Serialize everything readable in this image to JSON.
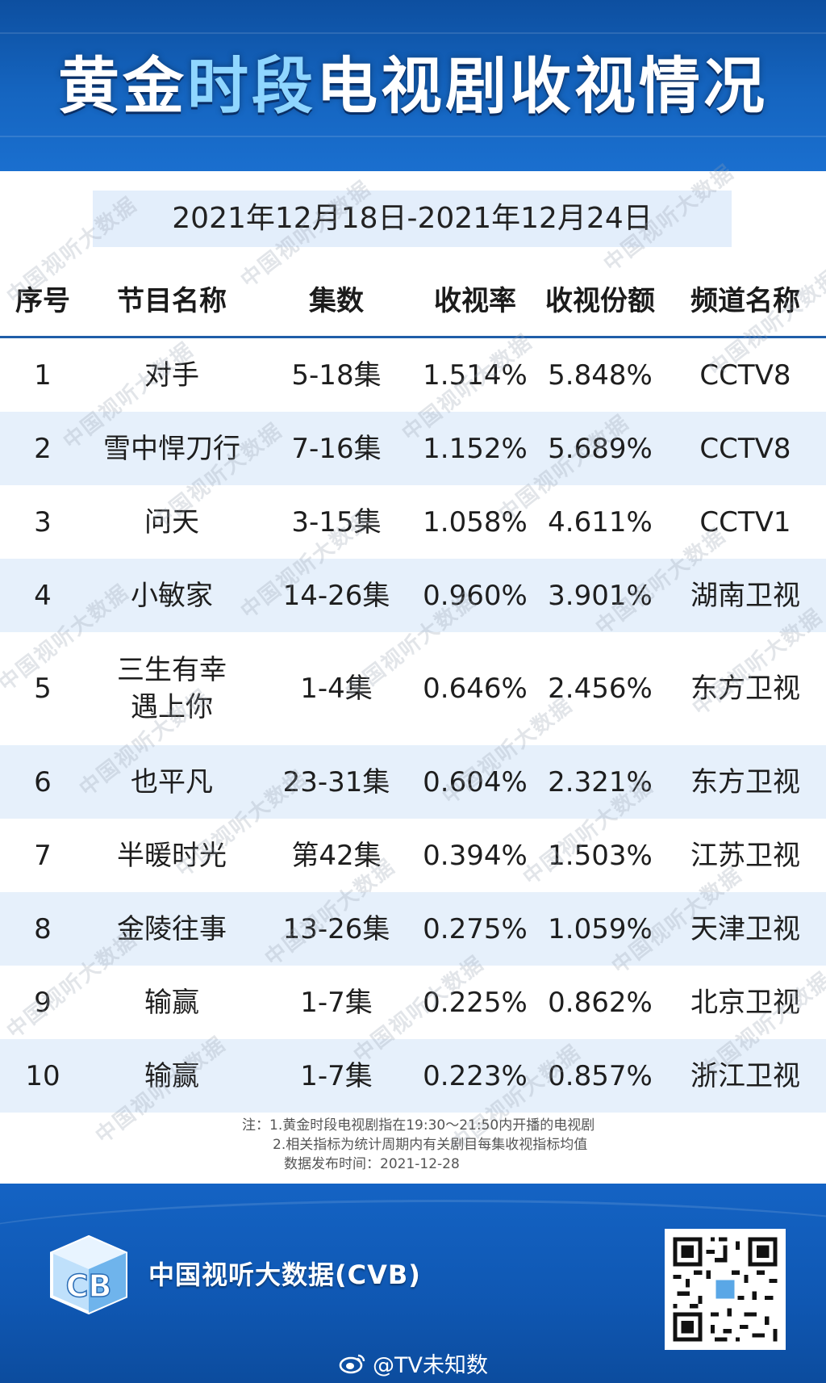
{
  "header": {
    "title_part1": "黄金",
    "title_part2": "时段",
    "title_part3": "电视剧",
    "title_part4": "收视情况"
  },
  "date_range": "2021年12月18日-2021年12月24日",
  "table": {
    "columns": [
      "序号",
      "节目名称",
      "集数",
      "收视率",
      "收视份额",
      "频道名称"
    ],
    "rows": [
      {
        "idx": "1",
        "name": "对手",
        "episodes": "5-18集",
        "rating": "1.514%",
        "share": "5.848%",
        "channel": "CCTV8"
      },
      {
        "idx": "2",
        "name": "雪中悍刀行",
        "episodes": "7-16集",
        "rating": "1.152%",
        "share": "5.689%",
        "channel": "CCTV8"
      },
      {
        "idx": "3",
        "name": "问天",
        "episodes": "3-15集",
        "rating": "1.058%",
        "share": "4.611%",
        "channel": "CCTV1"
      },
      {
        "idx": "4",
        "name": "小敏家",
        "episodes": "14-26集",
        "rating": "0.960%",
        "share": "3.901%",
        "channel": "湖南卫视"
      },
      {
        "idx": "5",
        "name": "三生有幸遇上你",
        "episodes": "1-4集",
        "rating": "0.646%",
        "share": "2.456%",
        "channel": "东方卫视"
      },
      {
        "idx": "6",
        "name": "也平凡",
        "episodes": "23-31集",
        "rating": "0.604%",
        "share": "2.321%",
        "channel": "东方卫视"
      },
      {
        "idx": "7",
        "name": "半暖时光",
        "episodes": "第42集",
        "rating": "0.394%",
        "share": "1.503%",
        "channel": "江苏卫视"
      },
      {
        "idx": "8",
        "name": "金陵往事",
        "episodes": "13-26集",
        "rating": "0.275%",
        "share": "1.059%",
        "channel": "天津卫视"
      },
      {
        "idx": "9",
        "name": "输赢",
        "episodes": "1-7集",
        "rating": "0.225%",
        "share": "0.862%",
        "channel": "北京卫视"
      },
      {
        "idx": "10",
        "name": "输赢",
        "episodes": "1-7集",
        "rating": "0.223%",
        "share": "0.857%",
        "channel": "浙江卫视"
      }
    ]
  },
  "notes": {
    "line1": "注：1.黄金时段电视剧指在19:30～21:50内开播的电视剧",
    "line2": "2.相关指标为统计周期内有关剧目每集收视指标均值",
    "line3": "数据发布时间：2021-12-28"
  },
  "watermark": "中国视听大数据",
  "footer": {
    "logo_text": "CB",
    "brand": "中国视听大数据(CVB)",
    "weibo_handle": "@TV未知数"
  },
  "colors": {
    "header_bg": "#1565c0",
    "title_highlight": "#8fd6ff",
    "row_shade": "#e6f0fb",
    "header_rule": "#1f5ea8",
    "footer_bg": "#0f57b2"
  }
}
